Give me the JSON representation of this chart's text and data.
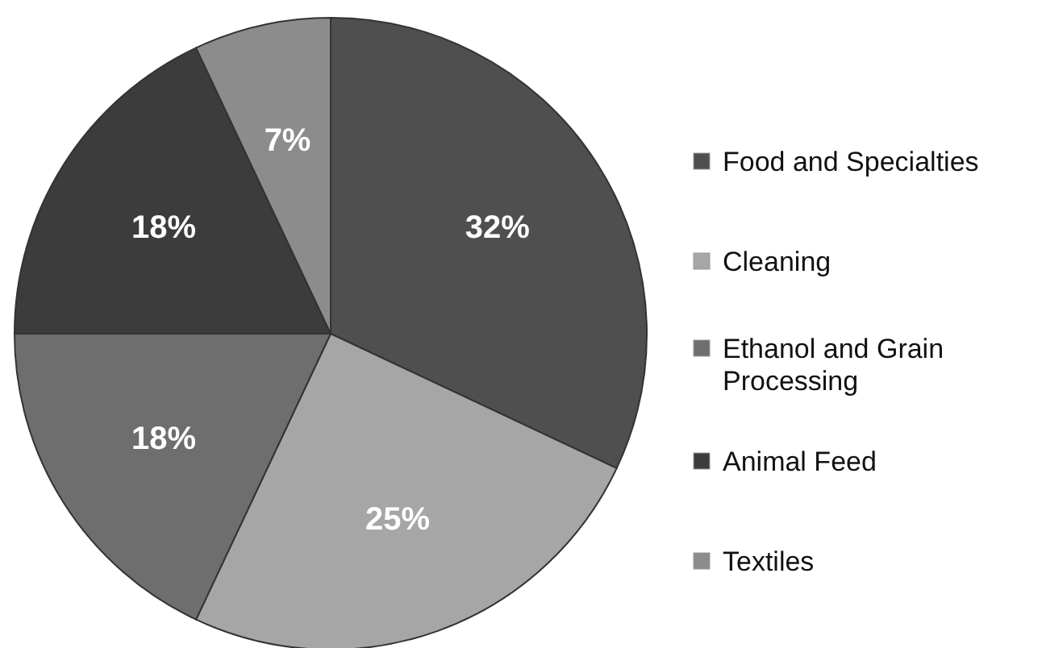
{
  "chart_data": {
    "type": "pie",
    "categories": [
      "Food and Specialties",
      "Cleaning",
      "Ethanol and Grain Processing",
      "Animal Feed",
      "Textiles"
    ],
    "values": [
      32,
      25,
      18,
      18,
      7
    ],
    "colors": [
      "#4f4f4f",
      "#a6a6a6",
      "#6e6e6e",
      "#3c3c3c",
      "#8c8c8c"
    ],
    "value_labels": [
      "32%",
      "25%",
      "18%",
      "18%",
      "7%"
    ],
    "legend": "right"
  }
}
